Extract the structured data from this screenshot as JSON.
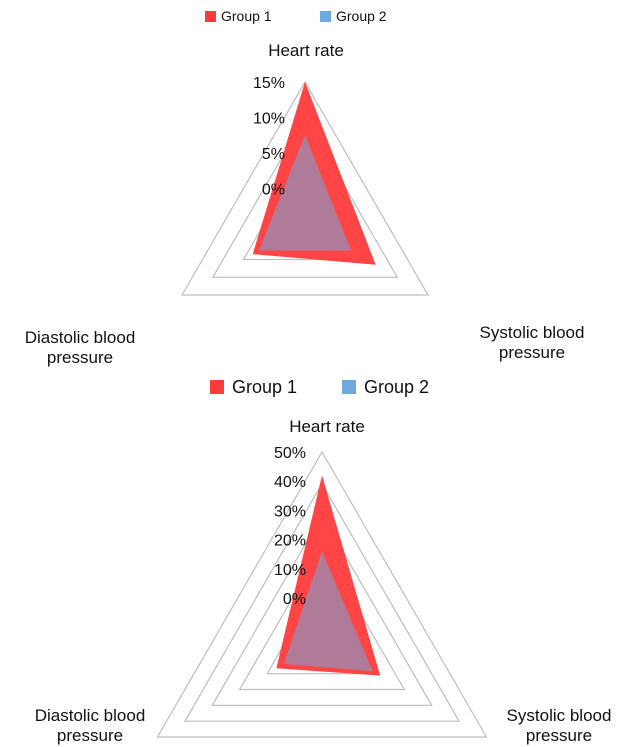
{
  "chart_data": [
    {
      "type": "radar",
      "legend": {
        "position": "top",
        "entries": [
          "Group 1",
          "Group 2"
        ]
      },
      "axes": [
        {
          "label_lines": [
            "Heart rate"
          ]
        },
        {
          "label_lines": [
            "Systolic blood",
            "pressure"
          ]
        },
        {
          "label_lines": [
            "Diastolic blood",
            "pressure"
          ]
        }
      ],
      "ticks": [
        "0%",
        "5%",
        "10%",
        "15%"
      ],
      "rmin": -5,
      "rmax": 15,
      "grid": true,
      "series": [
        {
          "name": "Group 1",
          "color": "#ff3b3b",
          "values": [
            15,
            6.5,
            3.5
          ]
        },
        {
          "name": "Group 2",
          "color": "#6fa8dc",
          "values": [
            7.5,
            2.5,
            2.5
          ]
        }
      ]
    },
    {
      "type": "radar",
      "legend": {
        "position": "top",
        "entries": [
          "Group 1",
          "Group 2"
        ]
      },
      "axes": [
        {
          "label_lines": [
            "Heart rate"
          ]
        },
        {
          "label_lines": [
            "Systolic blood",
            "pressure"
          ]
        },
        {
          "label_lines": [
            "Diastolic blood",
            "pressure"
          ]
        }
      ],
      "ticks": [
        "0%",
        "10%",
        "20%",
        "30%",
        "40%",
        "50%"
      ],
      "rmin": -15,
      "rmax": 50,
      "grid": true,
      "series": [
        {
          "name": "Group 1",
          "color": "#ff3b3b",
          "values": [
            42,
            8,
            3
          ]
        },
        {
          "name": "Group 2",
          "color": "#6fa8dc",
          "values": [
            16,
            5,
            0
          ]
        }
      ]
    }
  ]
}
